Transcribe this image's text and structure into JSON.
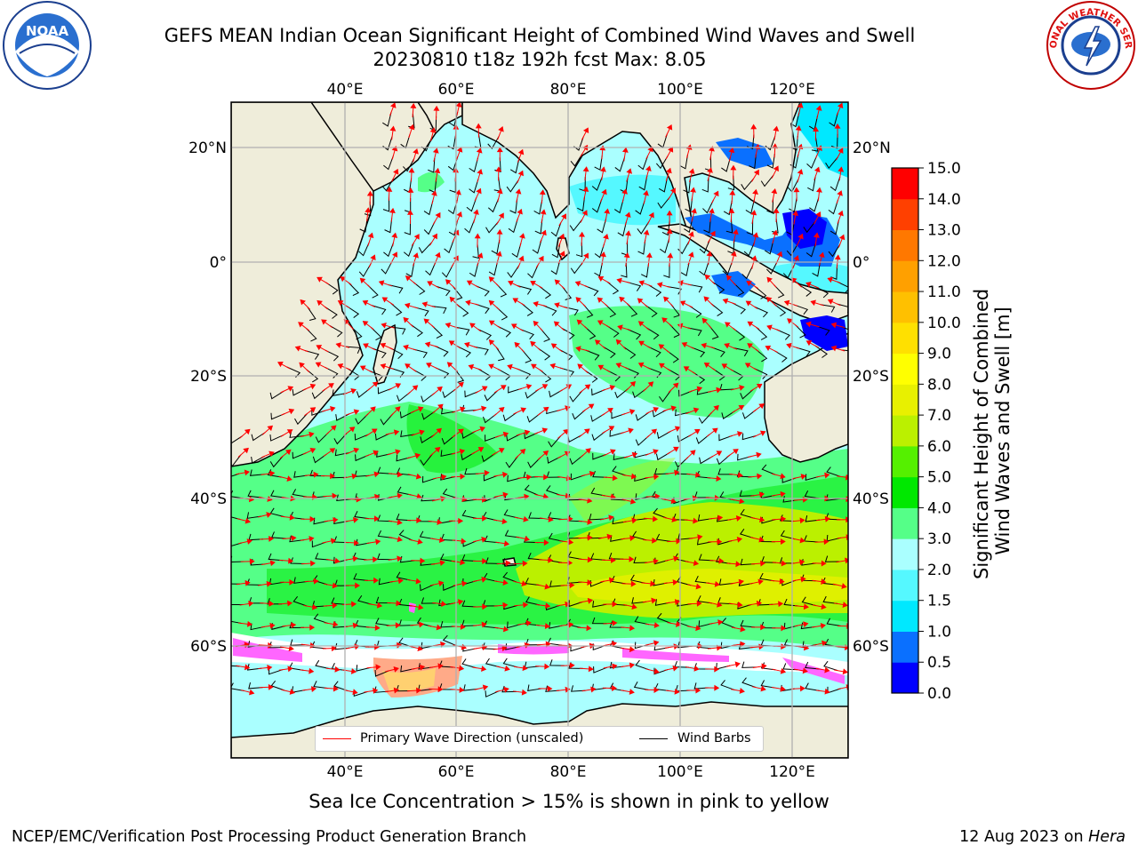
{
  "title": {
    "line1": "GEFS MEAN Indian Ocean Significant Height of Combined Wind Waves and Swell",
    "line2": "20230810 t18z 192h fcst   Max: 8.05"
  },
  "map": {
    "lon_ticks": [
      "40°E",
      "60°E",
      "80°E",
      "100°E",
      "120°E"
    ],
    "lat_ticks": [
      "20°N",
      "0°",
      "20°S",
      "40°S",
      "60°S"
    ],
    "lon_range": [
      20,
      130
    ],
    "lat_range": [
      -76,
      27
    ]
  },
  "legend": {
    "wave_direction": "Primary Wave Direction (unscaled)",
    "wind_barbs": "Wind Barbs"
  },
  "colorbar": {
    "label_line1": "Significant Height of Combined",
    "label_line2": "Wind Waves and Swell [m]",
    "ticks": [
      "0.0",
      "0.5",
      "1.0",
      "1.5",
      "2.0",
      "3.0",
      "4.0",
      "5.0",
      "6.0",
      "7.0",
      "8.0",
      "9.0",
      "10.0",
      "11.0",
      "12.0",
      "13.0",
      "14.0",
      "15.0"
    ],
    "colors": [
      "#0000ff",
      "#0a70ff",
      "#00e8ff",
      "#55f8ff",
      "#aaffff",
      "#55ff88",
      "#00e800",
      "#55f000",
      "#bbf000",
      "#e8f000",
      "#ffff00",
      "#ffe000",
      "#ffc000",
      "#ffa000",
      "#ff7800",
      "#ff4000",
      "#ff0000"
    ]
  },
  "sea_ice_note": "Sea Ice Concentration > 15% is shown in pink to yellow",
  "footer": {
    "left": "NCEP/EMC/Verification Post Processing Product Generation Branch",
    "date": "12 Aug 2023 on ",
    "machine": "Hera"
  },
  "logos": {
    "noaa_text": "NOAA",
    "nws_text": "NATIONAL WEATHER SERVICE"
  },
  "colors": {
    "land": "#efedda",
    "wave_arrow": "#ff0000",
    "wind_barb": "#000000",
    "grid": "#b0b0b0"
  }
}
